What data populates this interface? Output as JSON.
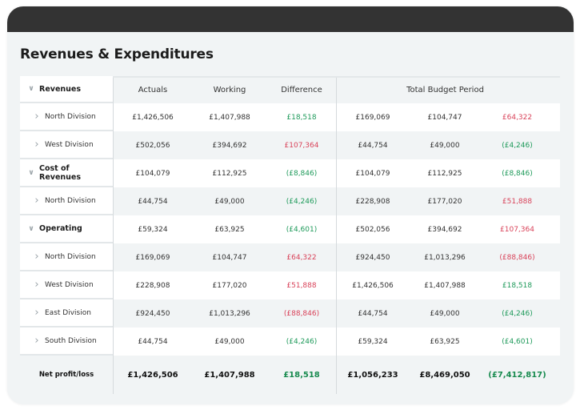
{
  "title": "Revenues & Expenditures",
  "columns": {
    "actuals": "Actuals",
    "working": "Working",
    "difference": "Difference",
    "total_budget_period": "Total Budget Period"
  },
  "colors": {
    "positive": "#1e9a5a",
    "negative": "#d9435a",
    "topbar": "#333333"
  },
  "rows": [
    {
      "label": "Revenues",
      "type": "group",
      "icon": "chevron-down-icon",
      "header": true
    },
    {
      "label": "North Division",
      "type": "sub",
      "icon": "chevron-right-icon",
      "values": [
        "£1,426,506",
        "£1,407,988",
        "£18,518",
        "£169,069",
        "£104,747",
        "£64,322"
      ],
      "status": [
        "pos",
        "neg"
      ]
    },
    {
      "label": "West Division",
      "type": "sub",
      "icon": "chevron-right-icon",
      "values": [
        "£502,056",
        "£394,692",
        "£107,364",
        "£44,754",
        "£49,000",
        "(£4,246)"
      ],
      "status": [
        "neg",
        "pos"
      ]
    },
    {
      "label": "Cost of Revenues",
      "type": "group",
      "icon": "chevron-down-icon",
      "values": [
        "£104,079",
        "£112,925",
        "(£8,846)",
        "£104,079",
        "£112,925",
        "(£8,846)"
      ],
      "status": [
        "pos",
        "pos"
      ]
    },
    {
      "label": "North Division",
      "type": "sub",
      "icon": "chevron-right-icon",
      "values": [
        "£44,754",
        "£49,000",
        "(£4,246)",
        "£228,908",
        "£177,020",
        "£51,888"
      ],
      "status": [
        "pos",
        "neg"
      ]
    },
    {
      "label": "Operating",
      "type": "group",
      "icon": "chevron-down-icon",
      "values": [
        "£59,324",
        "£63,925",
        "(£4,601)",
        "£502,056",
        "£394,692",
        "£107,364"
      ],
      "status": [
        "pos",
        "neg"
      ]
    },
    {
      "label": "North Division",
      "type": "sub",
      "icon": "chevron-right-icon",
      "values": [
        "£169,069",
        "£104,747",
        "£64,322",
        "£924,450",
        "£1,013,296",
        "(£88,846)"
      ],
      "status": [
        "neg",
        "neg"
      ]
    },
    {
      "label": "West Division",
      "type": "sub",
      "icon": "chevron-right-icon",
      "values": [
        "£228,908",
        "£177,020",
        "£51,888",
        "£1,426,506",
        "£1,407,988",
        "£18,518"
      ],
      "status": [
        "neg",
        "pos"
      ]
    },
    {
      "label": "East Division",
      "type": "sub",
      "icon": "chevron-right-icon",
      "values": [
        "£924,450",
        "£1,013,296",
        "(£88,846)",
        "£44,754",
        "£49,000",
        "(£4,246)"
      ],
      "status": [
        "neg",
        "pos"
      ]
    },
    {
      "label": "South Division",
      "type": "sub",
      "icon": "chevron-right-icon",
      "values": [
        "£44,754",
        "£49,000",
        "(£4,246)",
        "£59,324",
        "£63,925",
        "(£4,601)"
      ],
      "status": [
        "pos",
        "pos"
      ]
    }
  ],
  "net": {
    "label": "Net profit/loss",
    "values": [
      "£1,426,506",
      "£1,407,988",
      "£18,518",
      "£1,056,233",
      "£8,469,050",
      "(£7,412,817)"
    ],
    "status": [
      "pos",
      "pos"
    ]
  }
}
